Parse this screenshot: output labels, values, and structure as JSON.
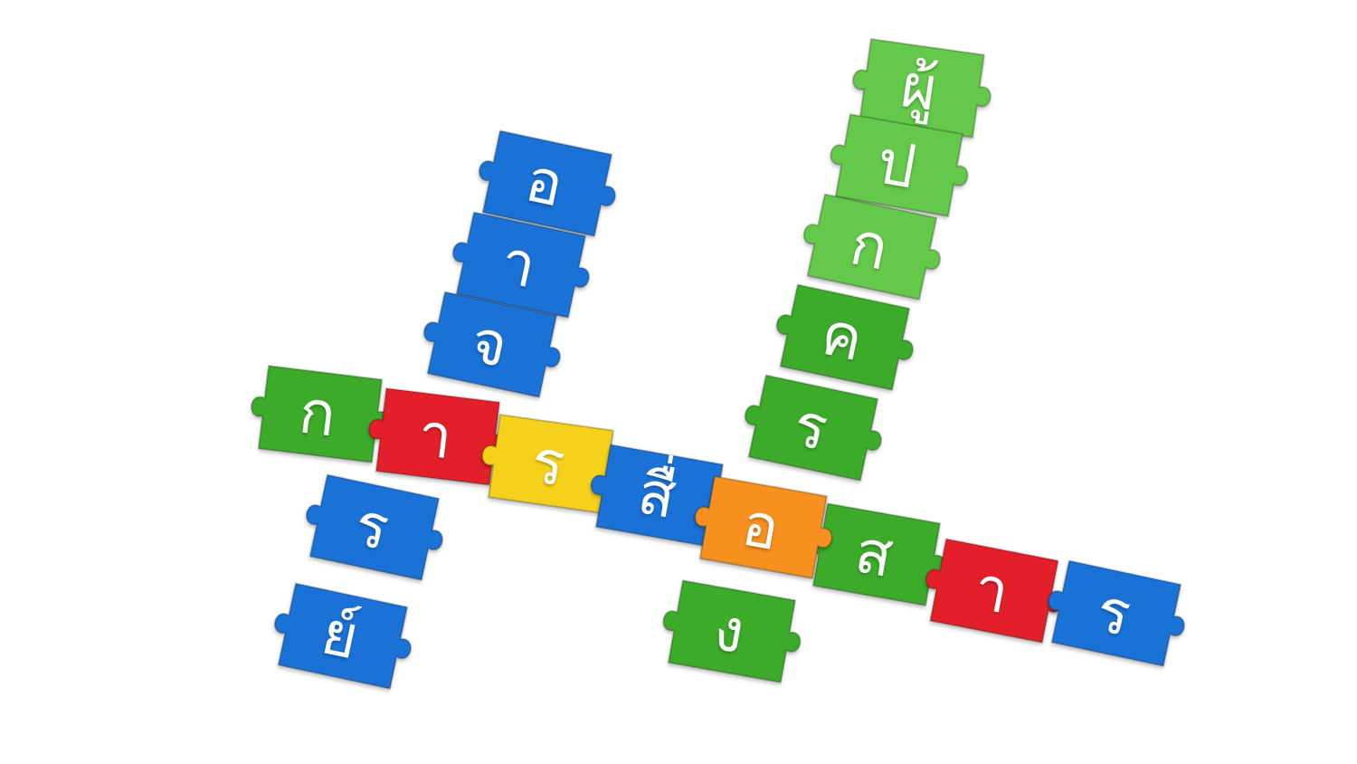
{
  "colors": {
    "blue": "#1a72d6",
    "green": "#3cab2a",
    "lightgreen": "#64c84a",
    "red": "#e3202a",
    "yellow": "#f4d21c",
    "orange": "#f7901e"
  },
  "word_left_vertical": {
    "label": "อาจารย์",
    "tiles": [
      {
        "char": "อ",
        "color": "blue"
      },
      {
        "char": "า",
        "color": "blue"
      },
      {
        "char": "จ",
        "color": "blue"
      },
      {
        "char": "า",
        "color": "red"
      },
      {
        "char": "ร",
        "color": "blue"
      },
      {
        "char": "ย์",
        "color": "blue"
      }
    ]
  },
  "word_right_vertical": {
    "label": "ผู้ปกครอง",
    "tiles": [
      {
        "char": "ผู้",
        "color": "lightgreen"
      },
      {
        "char": "ป",
        "color": "lightgreen"
      },
      {
        "char": "ก",
        "color": "lightgreen"
      },
      {
        "char": "ค",
        "color": "green"
      },
      {
        "char": "ร",
        "color": "green"
      },
      {
        "char": "อ",
        "color": "orange"
      },
      {
        "char": "ง",
        "color": "green"
      }
    ]
  },
  "word_horizontal": {
    "label": "การสื่อสาร",
    "tiles": [
      {
        "char": "ก",
        "color": "green"
      },
      {
        "char": "า",
        "color": "red"
      },
      {
        "char": "ร",
        "color": "yellow"
      },
      {
        "char": "สื่",
        "color": "blue"
      },
      {
        "char": "อ",
        "color": "orange"
      },
      {
        "char": "ส",
        "color": "green"
      },
      {
        "char": "า",
        "color": "red"
      },
      {
        "char": "ร",
        "color": "blue"
      }
    ]
  }
}
